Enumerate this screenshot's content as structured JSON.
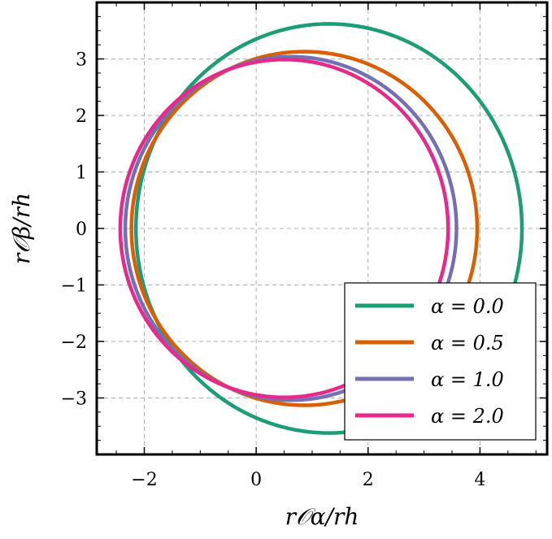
{
  "chart_data": {
    "type": "line",
    "xlabel": "r𝒪α/rh",
    "ylabel": "r𝒪β/rh",
    "xlim": [
      -2.85,
      5.2
    ],
    "ylim": [
      -4.0,
      4.0
    ],
    "xticks": [
      -2,
      0,
      2,
      4
    ],
    "yticks": [
      -3,
      -2,
      -1,
      0,
      1,
      2,
      3
    ],
    "xtick_labels": [
      "−2",
      "0",
      "2",
      "4"
    ],
    "ytick_labels": [
      "−3",
      "−2",
      "−1",
      "0",
      "1",
      "2",
      "3"
    ],
    "grid": true,
    "legend_position": "bottom-right",
    "series": [
      {
        "name": "α = 0.0",
        "color": "#1b9e77",
        "shape": "ellipse",
        "center": [
          1.3,
          0.0
        ],
        "radius_x": 3.45,
        "radius_y": 3.62
      },
      {
        "name": "α = 0.5",
        "color": "#d95f02",
        "shape": "ellipse",
        "center": [
          0.86,
          0.0
        ],
        "radius_x": 3.09,
        "radius_y": 3.13
      },
      {
        "name": "α = 1.0",
        "color": "#7570b3",
        "shape": "ellipse",
        "center": [
          0.62,
          0.0
        ],
        "radius_x": 2.96,
        "radius_y": 3.04
      },
      {
        "name": "α = 2.0",
        "color": "#e7298a",
        "shape": "ellipse",
        "center": [
          0.5,
          0.0
        ],
        "radius_x": 2.93,
        "radius_y": 2.99
      }
    ]
  }
}
